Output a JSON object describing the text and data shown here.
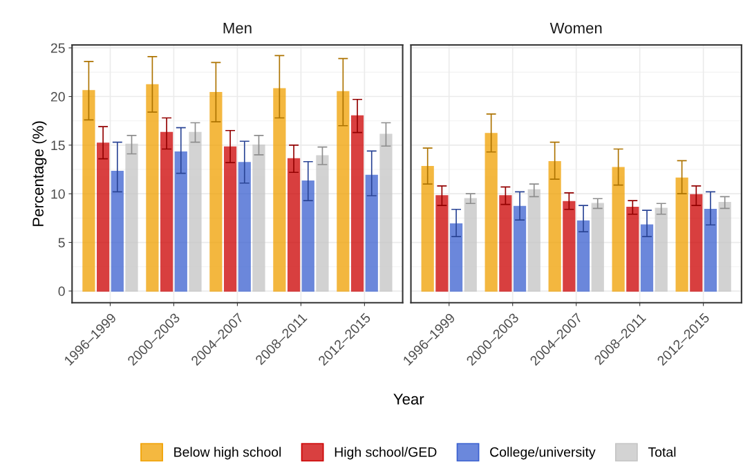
{
  "chart_data": [
    {
      "type": "bar",
      "title": "Men",
      "xlabel": "Year",
      "ylabel": "Percentage (%)",
      "categories": [
        "1996–1999",
        "2000–2003",
        "2004–2007",
        "2008–2011",
        "2012–2015"
      ],
      "ylim": [
        -1.2,
        25.3
      ],
      "yticks": [
        0,
        5,
        10,
        15,
        20,
        25
      ],
      "grid": true,
      "legend": "bottom",
      "series": [
        {
          "name": "Below high school",
          "color": "#f0a000",
          "values": [
            20.6,
            21.2,
            20.4,
            20.8,
            20.5
          ],
          "errors": [
            [
              17.6,
              23.6
            ],
            [
              18.4,
              24.1
            ],
            [
              17.4,
              23.5
            ],
            [
              17.8,
              24.2
            ],
            [
              17.0,
              23.9
            ]
          ]
        },
        {
          "name": "High school/GED",
          "color": "#cc0000",
          "values": [
            15.2,
            16.3,
            14.8,
            13.6,
            18.0
          ],
          "errors": [
            [
              13.6,
              16.9
            ],
            [
              14.6,
              17.8
            ],
            [
              13.2,
              16.5
            ],
            [
              12.2,
              15.0
            ],
            [
              16.3,
              19.7
            ]
          ]
        },
        {
          "name": "College/university",
          "color": "#3a60d0",
          "values": [
            12.3,
            14.3,
            13.2,
            11.3,
            11.9
          ],
          "errors": [
            [
              10.2,
              15.3
            ],
            [
              12.1,
              16.8
            ],
            [
              11.1,
              15.4
            ],
            [
              9.3,
              13.3
            ],
            [
              9.8,
              14.4
            ]
          ]
        },
        {
          "name": "Total",
          "color": "#c4c4c4",
          "values": [
            15.1,
            16.3,
            15.0,
            13.9,
            16.1
          ],
          "errors": [
            [
              14.1,
              16.0
            ],
            [
              15.3,
              17.3
            ],
            [
              14.0,
              16.0
            ],
            [
              13.0,
              14.8
            ],
            [
              14.9,
              17.3
            ]
          ]
        }
      ]
    },
    {
      "type": "bar",
      "title": "Women",
      "categories": [
        "1996–1999",
        "2000–2003",
        "2004–2007",
        "2008–2011",
        "2012–2015"
      ],
      "ylim": [
        -1.2,
        25.3
      ],
      "tick_labels": "x",
      "grid": true,
      "series": [
        {
          "color": "#f0a000",
          "values": [
            12.8,
            16.2,
            13.3,
            12.7,
            11.6
          ],
          "errors": [
            [
              11.0,
              14.7
            ],
            [
              14.3,
              18.2
            ],
            [
              11.5,
              15.3
            ],
            [
              10.9,
              14.6
            ],
            [
              10.0,
              13.4
            ]
          ]
        },
        {
          "color": "#cc0000",
          "values": [
            9.8,
            9.8,
            9.2,
            8.6,
            9.9
          ],
          "errors": [
            [
              8.8,
              10.8
            ],
            [
              8.9,
              10.7
            ],
            [
              8.4,
              10.1
            ],
            [
              7.9,
              9.3
            ],
            [
              8.8,
              10.8
            ]
          ]
        },
        {
          "color": "#3a60d0",
          "values": [
            6.9,
            8.7,
            7.2,
            6.8,
            8.4
          ],
          "errors": [
            [
              5.6,
              8.4
            ],
            [
              7.3,
              10.2
            ],
            [
              6.1,
              8.8
            ],
            [
              5.6,
              8.3
            ],
            [
              6.8,
              10.2
            ]
          ]
        },
        {
          "color": "#c4c4c4",
          "values": [
            9.5,
            10.4,
            9.0,
            8.5,
            9.1
          ],
          "errors": [
            [
              9.0,
              10.0
            ],
            [
              9.7,
              11.0
            ],
            [
              8.5,
              9.5
            ],
            [
              7.9,
              9.0
            ],
            [
              8.5,
              9.7
            ]
          ]
        }
      ]
    }
  ]
}
